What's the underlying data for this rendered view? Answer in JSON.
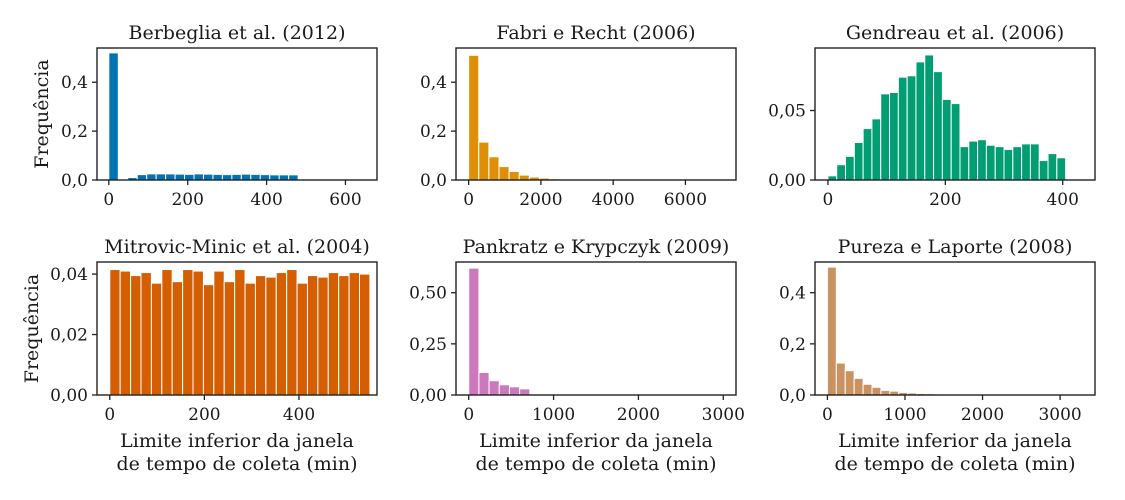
{
  "chart_data": [
    {
      "type": "bar",
      "title": "Berbeglia et al. (2012)",
      "ylabel": "Frequência",
      "xlabel": "",
      "color": "#0173b2",
      "xlim": [
        -30,
        680
      ],
      "ylim": [
        0,
        0.54
      ],
      "xticks": [
        0,
        200,
        400,
        600
      ],
      "xtick_labels": [
        "0",
        "200",
        "400",
        "600"
      ],
      "yticks": [
        0,
        0.2,
        0.4
      ],
      "ytick_labels": [
        "0,0",
        "0,2",
        "0,4"
      ],
      "bin_width": 24,
      "bin_start": 0,
      "values": [
        0.52,
        0.0,
        0.01,
        0.022,
        0.025,
        0.025,
        0.025,
        0.024,
        0.023,
        0.025,
        0.024,
        0.023,
        0.022,
        0.023,
        0.024,
        0.023,
        0.022,
        0.021,
        0.021,
        0.021
      ]
    },
    {
      "type": "bar",
      "title": "Fabri e Recht (2006)",
      "ylabel": "",
      "xlabel": "",
      "color": "#de8f05",
      "xlim": [
        -350,
        7400
      ],
      "ylim": [
        0,
        0.54
      ],
      "xticks": [
        0,
        2000,
        4000,
        6000
      ],
      "xtick_labels": [
        "0",
        "2000",
        "4000",
        "6000"
      ],
      "yticks": [
        0,
        0.2,
        0.4
      ],
      "ytick_labels": [
        "0,0",
        "0,2",
        "0,4"
      ],
      "bin_width": 280,
      "bin_start": 0,
      "values": [
        0.51,
        0.155,
        0.095,
        0.055,
        0.035,
        0.02,
        0.012,
        0.008,
        0.005,
        0.003
      ]
    },
    {
      "type": "bar",
      "title": "Gendreau et al. (2006)",
      "ylabel": "",
      "xlabel": "",
      "color": "#029e73",
      "xlim": [
        -22,
        455
      ],
      "ylim": [
        0,
        0.095
      ],
      "xticks": [
        0,
        200,
        400
      ],
      "xtick_labels": [
        "0",
        "200",
        "400"
      ],
      "yticks": [
        0,
        0.05
      ],
      "ytick_labels": [
        "0,00",
        "0,05"
      ],
      "bin_width": 15,
      "bin_start": 0,
      "values": [
        0.003,
        0.011,
        0.017,
        0.027,
        0.037,
        0.044,
        0.062,
        0.063,
        0.074,
        0.075,
        0.085,
        0.09,
        0.078,
        0.058,
        0.055,
        0.024,
        0.028,
        0.029,
        0.025,
        0.024,
        0.022,
        0.024,
        0.026,
        0.026,
        0.014,
        0.019,
        0.016
      ]
    },
    {
      "type": "bar",
      "title": "Mitrovic-Minic et al. (2004)",
      "ylabel": "Frequência",
      "xlabel": "Limite inferior da janela de tempo de coleta (min)",
      "color": "#d55e00",
      "xlim": [
        -27,
        565
      ],
      "ylim": [
        0,
        0.044
      ],
      "xticks": [
        0,
        200,
        400
      ],
      "xtick_labels": [
        "0",
        "200",
        "400"
      ],
      "yticks": [
        0,
        0.02,
        0.04
      ],
      "ytick_labels": [
        "0,00",
        "0,02",
        "0,04"
      ],
      "bin_width": 22,
      "bin_start": 0,
      "values": [
        0.0415,
        0.041,
        0.0395,
        0.0405,
        0.037,
        0.0415,
        0.0375,
        0.0415,
        0.041,
        0.0365,
        0.041,
        0.0375,
        0.0415,
        0.037,
        0.0395,
        0.039,
        0.0405,
        0.0415,
        0.037,
        0.0395,
        0.039,
        0.0405,
        0.0395,
        0.0405,
        0.04
      ]
    },
    {
      "type": "bar",
      "title": "Pankratz e Krypczyk (2009)",
      "ylabel": "",
      "xlabel": "Limite inferior da janela de tempo de coleta (min)",
      "color": "#cc78bc",
      "xlim": [
        -150,
        3150
      ],
      "ylim": [
        0,
        0.65
      ],
      "xticks": [
        0,
        1000,
        2000,
        3000
      ],
      "xtick_labels": [
        "0",
        "1000",
        "2000",
        "3000"
      ],
      "yticks": [
        0,
        0.25,
        0.5
      ],
      "ytick_labels": [
        "0,00",
        "0,25",
        "0,50"
      ],
      "bin_width": 120,
      "bin_start": 0,
      "values": [
        0.62,
        0.11,
        0.07,
        0.05,
        0.04,
        0.03
      ]
    },
    {
      "type": "bar",
      "title": "Pureza e Laporte (2008)",
      "ylabel": "",
      "xlabel": "Limite inferior da janela de tempo de coleta (min)",
      "color": "#ca9161",
      "xlim": [
        -160,
        3450
      ],
      "ylim": [
        0,
        0.52
      ],
      "xticks": [
        0,
        1000,
        2000,
        3000
      ],
      "xtick_labels": [
        "0",
        "1000",
        "2000",
        "3000"
      ],
      "yticks": [
        0,
        0.2,
        0.4
      ],
      "ytick_labels": [
        "0,0",
        "0,2",
        "0,4"
      ],
      "bin_width": 115,
      "bin_start": 0,
      "values": [
        0.5,
        0.125,
        0.095,
        0.065,
        0.042,
        0.03,
        0.018,
        0.015,
        0.01,
        0.008,
        0.006,
        0.005,
        0.004,
        0.003,
        0.002
      ]
    }
  ]
}
